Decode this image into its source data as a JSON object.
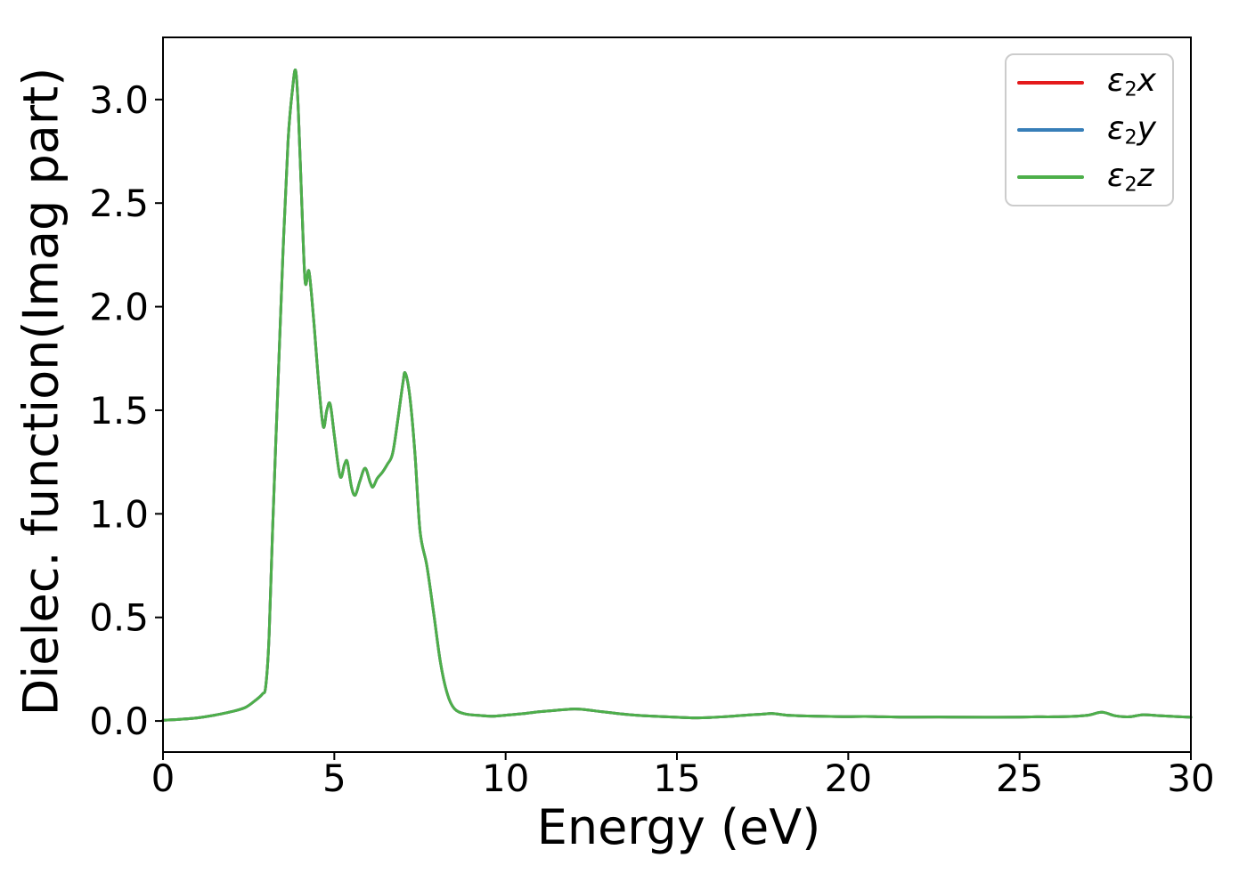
{
  "figure": {
    "background": "#ffffff",
    "axis_color": "#000000"
  },
  "chart_data": {
    "type": "line",
    "title": "",
    "xlabel": "Energy (eV)",
    "ylabel": "Dielec. function(Imag part)",
    "xlim": [
      0,
      30
    ],
    "ylim": [
      -0.15,
      3.3
    ],
    "xticks": [
      0,
      5,
      10,
      15,
      20,
      25,
      30
    ],
    "xtick_labels": [
      "0",
      "5",
      "10",
      "15",
      "20",
      "25",
      "30"
    ],
    "yticks": [
      0,
      0.5,
      1,
      1.5,
      2,
      2.5,
      3
    ],
    "ytick_labels": [
      "0.0",
      "0.5",
      "1.0",
      "1.5",
      "2.0",
      "2.5",
      "3.0"
    ],
    "grid": false,
    "overlapping_series": true,
    "legend": {
      "position": "upper right",
      "border_color": "#cccccc"
    },
    "x": [
      0,
      0.5,
      1,
      1.5,
      2,
      2.4,
      2.7,
      2.9,
      3,
      3.1,
      3.2,
      3.35,
      3.5,
      3.65,
      3.78,
      3.87,
      3.95,
      4.05,
      4.15,
      4.26,
      4.4,
      4.55,
      4.68,
      4.78,
      4.88,
      5,
      5.17,
      5.3,
      5.38,
      5.5,
      5.61,
      5.75,
      5.9,
      6.05,
      6.13,
      6.25,
      6.4,
      6.55,
      6.7,
      6.85,
      7,
      7.07,
      7.2,
      7.35,
      7.5,
      7.7,
      7.9,
      8.1,
      8.3,
      8.5,
      8.8,
      9.2,
      9.6,
      10,
      10.5,
      11,
      11.5,
      12,
      12.3,
      12.8,
      13.5,
      14.2,
      15,
      15.5,
      16,
      16.5,
      17,
      17.5,
      17.8,
      18.2,
      18.8,
      19.5,
      20,
      20.5,
      21,
      21.5,
      22,
      23,
      24,
      25,
      25.5,
      26,
      26.5,
      27,
      27.4,
      27.8,
      28.2,
      28.6,
      29,
      29.5,
      30
    ],
    "series": [
      {
        "name": "ε2x",
        "label": {
          "symbol": "ε",
          "subscript": "2",
          "component": "x"
        },
        "color": "#e41a1c",
        "values": [
          0.004,
          0.008,
          0.015,
          0.028,
          0.045,
          0.065,
          0.1,
          0.13,
          0.17,
          0.42,
          0.93,
          1.6,
          2.25,
          2.8,
          3.05,
          3.14,
          2.95,
          2.5,
          2.12,
          2.17,
          1.93,
          1.62,
          1.42,
          1.5,
          1.53,
          1.38,
          1.18,
          1.24,
          1.25,
          1.13,
          1.09,
          1.16,
          1.22,
          1.15,
          1.13,
          1.17,
          1.2,
          1.24,
          1.29,
          1.45,
          1.63,
          1.68,
          1.57,
          1.3,
          0.92,
          0.75,
          0.52,
          0.28,
          0.13,
          0.06,
          0.035,
          0.027,
          0.023,
          0.028,
          0.035,
          0.045,
          0.052,
          0.058,
          0.055,
          0.045,
          0.032,
          0.024,
          0.018,
          0.015,
          0.017,
          0.022,
          0.028,
          0.033,
          0.036,
          0.028,
          0.024,
          0.022,
          0.021,
          0.022,
          0.02,
          0.019,
          0.019,
          0.019,
          0.018,
          0.019,
          0.02,
          0.02,
          0.022,
          0.028,
          0.042,
          0.025,
          0.02,
          0.03,
          0.026,
          0.022,
          0.018
        ]
      },
      {
        "name": "ε2y",
        "label": {
          "symbol": "ε",
          "subscript": "2",
          "component": "y"
        },
        "color": "#377eb8",
        "values": [
          0.004,
          0.008,
          0.015,
          0.028,
          0.045,
          0.065,
          0.1,
          0.13,
          0.17,
          0.42,
          0.93,
          1.6,
          2.25,
          2.8,
          3.05,
          3.14,
          2.95,
          2.5,
          2.12,
          2.17,
          1.93,
          1.62,
          1.42,
          1.5,
          1.53,
          1.38,
          1.18,
          1.24,
          1.25,
          1.13,
          1.09,
          1.16,
          1.22,
          1.15,
          1.13,
          1.17,
          1.2,
          1.24,
          1.29,
          1.45,
          1.63,
          1.68,
          1.57,
          1.3,
          0.92,
          0.75,
          0.52,
          0.28,
          0.13,
          0.06,
          0.035,
          0.027,
          0.023,
          0.028,
          0.035,
          0.045,
          0.052,
          0.058,
          0.055,
          0.045,
          0.032,
          0.024,
          0.018,
          0.015,
          0.017,
          0.022,
          0.028,
          0.033,
          0.036,
          0.028,
          0.024,
          0.022,
          0.021,
          0.022,
          0.02,
          0.019,
          0.019,
          0.019,
          0.018,
          0.019,
          0.02,
          0.02,
          0.022,
          0.028,
          0.042,
          0.025,
          0.02,
          0.03,
          0.026,
          0.022,
          0.018
        ]
      },
      {
        "name": "ε2z",
        "label": {
          "symbol": "ε",
          "subscript": "2",
          "component": "z"
        },
        "color": "#4daf4a",
        "values": [
          0.004,
          0.008,
          0.015,
          0.028,
          0.045,
          0.065,
          0.1,
          0.13,
          0.17,
          0.42,
          0.93,
          1.6,
          2.25,
          2.8,
          3.05,
          3.14,
          2.95,
          2.5,
          2.12,
          2.17,
          1.93,
          1.62,
          1.42,
          1.5,
          1.53,
          1.38,
          1.18,
          1.24,
          1.25,
          1.13,
          1.09,
          1.16,
          1.22,
          1.15,
          1.13,
          1.17,
          1.2,
          1.24,
          1.29,
          1.45,
          1.63,
          1.68,
          1.57,
          1.3,
          0.92,
          0.75,
          0.52,
          0.28,
          0.13,
          0.06,
          0.035,
          0.027,
          0.023,
          0.028,
          0.035,
          0.045,
          0.052,
          0.058,
          0.055,
          0.045,
          0.032,
          0.024,
          0.018,
          0.015,
          0.017,
          0.022,
          0.028,
          0.033,
          0.036,
          0.028,
          0.024,
          0.022,
          0.021,
          0.022,
          0.02,
          0.019,
          0.019,
          0.019,
          0.018,
          0.019,
          0.02,
          0.02,
          0.022,
          0.028,
          0.042,
          0.025,
          0.02,
          0.03,
          0.026,
          0.022,
          0.018
        ]
      }
    ]
  }
}
